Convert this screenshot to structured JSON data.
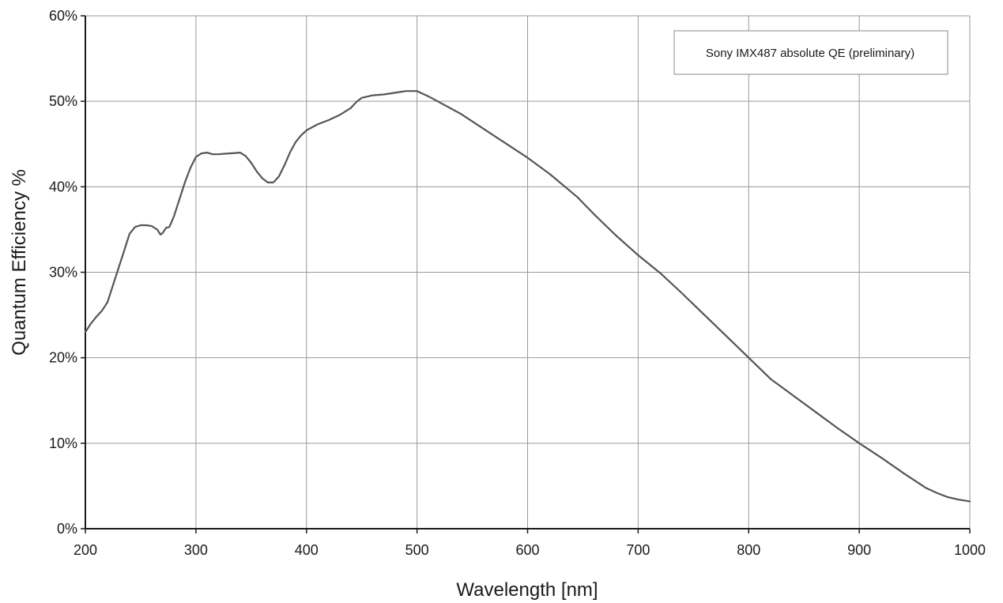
{
  "chart_data": {
    "type": "line",
    "title": "",
    "xlabel": "Wavelength [nm]",
    "ylabel": "Quantum Efficiency %",
    "xlim": [
      200,
      1000
    ],
    "ylim": [
      0,
      60
    ],
    "x_ticks": [
      200,
      300,
      400,
      500,
      600,
      700,
      800,
      900,
      1000
    ],
    "y_ticks": [
      0,
      10,
      20,
      30,
      40,
      50,
      60
    ],
    "x_tick_labels": [
      "200",
      "300",
      "400",
      "500",
      "600",
      "700",
      "800",
      "900",
      "1000"
    ],
    "y_tick_labels": [
      "0%",
      "10%",
      "20%",
      "30%",
      "40%",
      "50%",
      "60%"
    ],
    "grid": true,
    "legend_position": "top-right",
    "series": [
      {
        "name": "Sony IMX487 absolute QE (preliminary)",
        "color": "#555555",
        "x": [
          200,
          205,
          210,
          215,
          220,
          225,
          230,
          235,
          240,
          245,
          250,
          255,
          260,
          265,
          268,
          270,
          273,
          276,
          280,
          285,
          290,
          295,
          300,
          305,
          310,
          315,
          320,
          330,
          340,
          345,
          350,
          355,
          360,
          365,
          370,
          375,
          380,
          385,
          390,
          395,
          400,
          410,
          420,
          430,
          440,
          445,
          450,
          460,
          470,
          480,
          490,
          495,
          500,
          510,
          520,
          540,
          560,
          580,
          600,
          620,
          645,
          660,
          680,
          700,
          720,
          740,
          760,
          780,
          800,
          820,
          840,
          860,
          880,
          900,
          920,
          940,
          960,
          970,
          980,
          990,
          1000
        ],
        "y": [
          23.0,
          24.0,
          24.8,
          25.5,
          26.5,
          28.5,
          30.5,
          32.5,
          34.5,
          35.3,
          35.5,
          35.5,
          35.4,
          35.0,
          34.4,
          34.6,
          35.2,
          35.3,
          36.5,
          38.5,
          40.5,
          42.2,
          43.5,
          43.9,
          44.0,
          43.8,
          43.8,
          43.9,
          44.0,
          43.6,
          42.8,
          41.8,
          41.0,
          40.5,
          40.5,
          41.2,
          42.5,
          44.0,
          45.2,
          46.0,
          46.6,
          47.3,
          47.8,
          48.4,
          49.2,
          49.9,
          50.4,
          50.7,
          50.8,
          51.0,
          51.2,
          51.2,
          51.2,
          50.6,
          49.9,
          48.5,
          46.8,
          45.1,
          43.4,
          41.5,
          38.8,
          36.8,
          34.3,
          32.0,
          29.9,
          27.5,
          25.0,
          22.5,
          20.0,
          17.5,
          15.6,
          13.7,
          11.8,
          10.0,
          8.3,
          6.5,
          4.8,
          4.2,
          3.7,
          3.4,
          3.2
        ]
      }
    ]
  }
}
